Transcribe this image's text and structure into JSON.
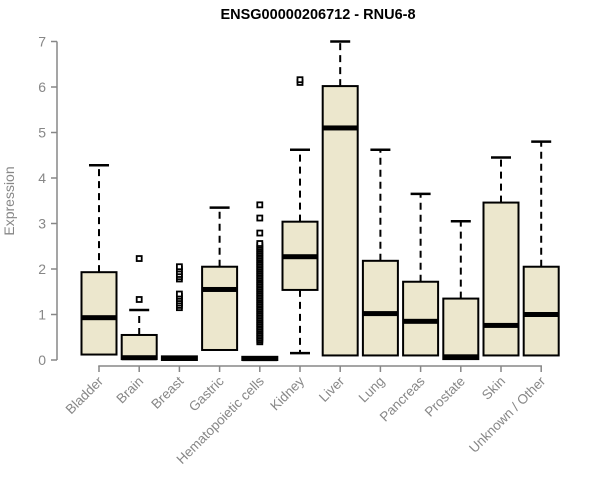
{
  "chart_data": {
    "type": "box",
    "title": "ENSG00000206712 - RNU6-8",
    "ylabel": "Expression",
    "xlabel": "",
    "ylim": [
      0,
      7
    ],
    "yticks": [
      0,
      1,
      2,
      3,
      4,
      5,
      6,
      7
    ],
    "grid": false,
    "legend": "none",
    "colors": {
      "box_fill": "#ECE7CD",
      "box_stroke": "#000000",
      "median": "#000000",
      "axis": "#878787",
      "tick_label": "#878787",
      "title": "#000000",
      "background": "#FFFFFF"
    },
    "categories": [
      "Bladder",
      "Brain",
      "Breast",
      "Gastric",
      "Hematopoietic cells",
      "Kidney",
      "Liver",
      "Lung",
      "Pancreas",
      "Prostate",
      "Skin",
      "Unknown / Other"
    ],
    "boxes": [
      {
        "category": "Bladder",
        "whisker_low": 0.08,
        "q1": 0.12,
        "median": 0.93,
        "q3": 1.93,
        "whisker_high": 4.28,
        "outliers": []
      },
      {
        "category": "Brain",
        "whisker_low": 0.0,
        "q1": 0.02,
        "median": 0.05,
        "q3": 0.55,
        "whisker_high": 1.1,
        "outliers": [
          1.33,
          2.23
        ]
      },
      {
        "category": "Breast",
        "whisker_low": 0.0,
        "q1": 0.0,
        "median": 0.04,
        "q3": 0.08,
        "whisker_high": 0.08,
        "outliers": [
          1.15,
          1.2,
          1.25,
          1.3,
          1.35,
          1.4,
          1.45,
          1.78,
          1.83,
          1.88,
          1.94,
          2.0,
          2.05
        ]
      },
      {
        "category": "Gastric",
        "whisker_low": 0.22,
        "q1": 0.22,
        "median": 1.55,
        "q3": 2.05,
        "whisker_high": 3.35,
        "outliers": []
      },
      {
        "category": "Hematopoietic cells",
        "whisker_low": 0.0,
        "q1": 0.0,
        "median": 0.03,
        "q3": 0.07,
        "whisker_high": 0.07,
        "outliers": [
          0.4,
          0.44,
          0.48,
          0.52,
          0.56,
          0.6,
          0.64,
          0.68,
          0.72,
          0.76,
          0.8,
          0.84,
          0.88,
          0.92,
          0.96,
          1.0,
          1.04,
          1.08,
          1.12,
          1.16,
          1.2,
          1.24,
          1.28,
          1.32,
          1.36,
          1.4,
          1.44,
          1.48,
          1.52,
          1.56,
          1.6,
          1.64,
          1.68,
          1.72,
          1.76,
          1.8,
          1.84,
          1.88,
          1.92,
          1.96,
          2.0,
          2.04,
          2.08,
          2.12,
          2.16,
          2.2,
          2.24,
          2.28,
          2.32,
          2.36,
          2.4,
          2.44,
          2.48,
          2.52,
          2.56,
          2.79,
          3.12,
          3.41
        ]
      },
      {
        "category": "Kidney",
        "whisker_low": 0.15,
        "q1": 1.54,
        "median": 2.27,
        "q3": 3.04,
        "whisker_high": 4.62,
        "outliers": [
          6.1,
          6.16
        ]
      },
      {
        "category": "Liver",
        "whisker_low": 0.1,
        "q1": 0.1,
        "median": 5.1,
        "q3": 6.02,
        "whisker_high": 7.0,
        "outliers": []
      },
      {
        "category": "Lung",
        "whisker_low": 0.1,
        "q1": 0.1,
        "median": 1.02,
        "q3": 2.18,
        "whisker_high": 4.62,
        "outliers": []
      },
      {
        "category": "Pancreas",
        "whisker_low": 0.1,
        "q1": 0.1,
        "median": 0.85,
        "q3": 1.72,
        "whisker_high": 3.65,
        "outliers": []
      },
      {
        "category": "Prostate",
        "whisker_low": 0.0,
        "q1": 0.02,
        "median": 0.07,
        "q3": 1.35,
        "whisker_high": 3.05,
        "outliers": []
      },
      {
        "category": "Skin",
        "whisker_low": 0.1,
        "q1": 0.1,
        "median": 0.76,
        "q3": 3.46,
        "whisker_high": 4.45,
        "outliers": []
      },
      {
        "category": "Unknown / Other",
        "whisker_low": 0.1,
        "q1": 0.1,
        "median": 1.0,
        "q3": 2.05,
        "whisker_high": 4.8,
        "outliers": []
      }
    ]
  }
}
